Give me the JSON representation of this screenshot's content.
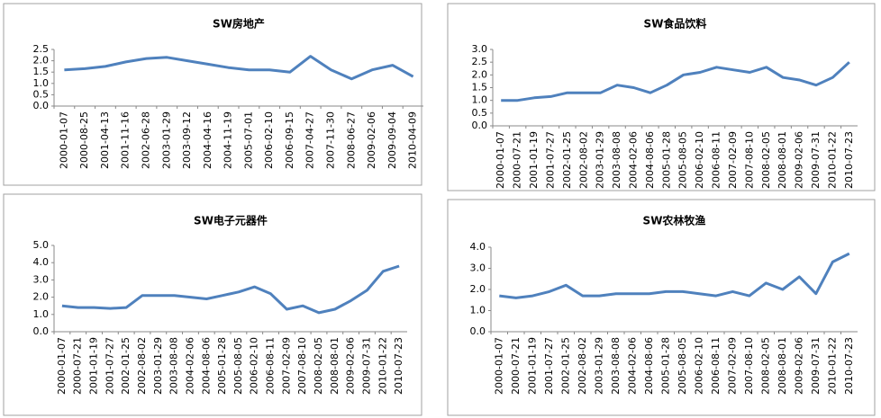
{
  "chart_data": [
    {
      "type": "line",
      "title": "SW房地产",
      "color": "#4f81bd",
      "categories": [
        "2000-01-07",
        "2000-08-25",
        "2001-04-13",
        "2001-11-16",
        "2002-06-28",
        "2003-01-29",
        "2003-09-12",
        "2004-04-16",
        "2004-11-19",
        "2005-07-01",
        "2006-02-10",
        "2006-09-15",
        "2007-04-27",
        "2007-11-30",
        "2008-06-27",
        "2009-02-06",
        "2009-09-04",
        "2010-04-09"
      ],
      "values": [
        1.6,
        1.65,
        1.75,
        1.95,
        2.1,
        2.15,
        2.0,
        1.85,
        1.7,
        1.6,
        1.6,
        1.5,
        2.2,
        1.6,
        1.2,
        1.6,
        1.8,
        1.3
      ],
      "ylim": [
        0,
        2.5
      ],
      "yticks": [
        {
          "value": 0,
          "label": "0.0"
        },
        {
          "value": 0.5,
          "label": "0.5"
        },
        {
          "value": 1,
          "label": "1.0"
        },
        {
          "value": 1.5,
          "label": "1.5"
        },
        {
          "value": 2,
          "label": "2.0"
        },
        {
          "value": 2.5,
          "label": "2.5"
        }
      ]
    },
    {
      "type": "line",
      "title": "SW食品饮料",
      "color": "#4f81bd",
      "categories": [
        "2000-01-07",
        "2000-07-21",
        "2001-01-19",
        "2001-07-27",
        "2002-01-25",
        "2002-08-02",
        "2003-01-29",
        "2003-08-08",
        "2004-02-06",
        "2004-08-06",
        "2005-01-28",
        "2005-08-05",
        "2006-02-10",
        "2006-08-11",
        "2007-02-09",
        "2007-08-10",
        "2008-02-05",
        "2008-08-01",
        "2009-02-06",
        "2009-07-31",
        "2010-01-22",
        "2010-07-23"
      ],
      "values": [
        1.0,
        1.0,
        1.1,
        1.15,
        1.3,
        1.3,
        1.3,
        1.6,
        1.5,
        1.3,
        1.6,
        2.0,
        2.1,
        2.3,
        2.2,
        2.1,
        2.3,
        1.9,
        1.8,
        1.6,
        1.9,
        2.5
      ],
      "ylim": [
        0,
        3
      ],
      "yticks": [
        {
          "value": 0,
          "label": "0.0"
        },
        {
          "value": 0.5,
          "label": "0.5"
        },
        {
          "value": 1,
          "label": "1.0"
        },
        {
          "value": 1.5,
          "label": "1.5"
        },
        {
          "value": 2,
          "label": "2.0"
        },
        {
          "value": 2.5,
          "label": "2.5"
        },
        {
          "value": 3,
          "label": "3.0"
        }
      ]
    },
    {
      "type": "line",
      "title": "SW电子元器件",
      "color": "#4f81bd",
      "categories": [
        "2000-01-07",
        "2000-07-21",
        "2001-01-19",
        "2001-07-27",
        "2002-01-25",
        "2002-08-02",
        "2003-01-29",
        "2003-08-08",
        "2004-02-06",
        "2004-08-06",
        "2005-01-28",
        "2005-08-05",
        "2006-02-10",
        "2006-08-11",
        "2007-02-09",
        "2007-08-10",
        "2008-02-05",
        "2008-08-01",
        "2009-02-06",
        "2009-07-31",
        "2010-01-22",
        "2010-07-23"
      ],
      "values": [
        1.5,
        1.4,
        1.4,
        1.35,
        1.4,
        2.1,
        2.1,
        2.1,
        2.0,
        1.9,
        2.1,
        2.3,
        2.6,
        2.2,
        1.3,
        1.5,
        1.1,
        1.3,
        1.8,
        2.4,
        3.5,
        3.8
      ],
      "ylim": [
        0,
        5
      ],
      "yticks": [
        {
          "value": 0,
          "label": "0.0"
        },
        {
          "value": 1,
          "label": "1.0"
        },
        {
          "value": 2,
          "label": "2.0"
        },
        {
          "value": 3,
          "label": "3.0"
        },
        {
          "value": 4,
          "label": "4.0"
        },
        {
          "value": 5,
          "label": "5.0"
        }
      ]
    },
    {
      "type": "line",
      "title": "SW农林牧渔",
      "color": "#4f81bd",
      "categories": [
        "2000-01-07",
        "2000-07-21",
        "2001-01-19",
        "2001-07-27",
        "2002-01-25",
        "2002-08-02",
        "2003-01-29",
        "2003-08-08",
        "2004-02-06",
        "2004-08-06",
        "2005-01-28",
        "2005-08-05",
        "2006-02-10",
        "2006-08-11",
        "2007-02-09",
        "2007-08-10",
        "2008-02-05",
        "2008-08-01",
        "2009-02-06",
        "2009-07-31",
        "2010-01-22",
        "2010-07-23"
      ],
      "values": [
        1.7,
        1.6,
        1.7,
        1.9,
        2.2,
        1.7,
        1.7,
        1.8,
        1.8,
        1.8,
        1.9,
        1.9,
        1.8,
        1.7,
        1.9,
        1.7,
        2.3,
        2.0,
        2.6,
        1.8,
        3.3,
        3.7
      ],
      "ylim": [
        0,
        4
      ],
      "yticks": [
        {
          "value": 0,
          "label": "0.0"
        },
        {
          "value": 1,
          "label": "1.0"
        },
        {
          "value": 2,
          "label": "2.0"
        },
        {
          "value": 3,
          "label": "3.0"
        },
        {
          "value": 4,
          "label": "4.0"
        }
      ]
    }
  ]
}
